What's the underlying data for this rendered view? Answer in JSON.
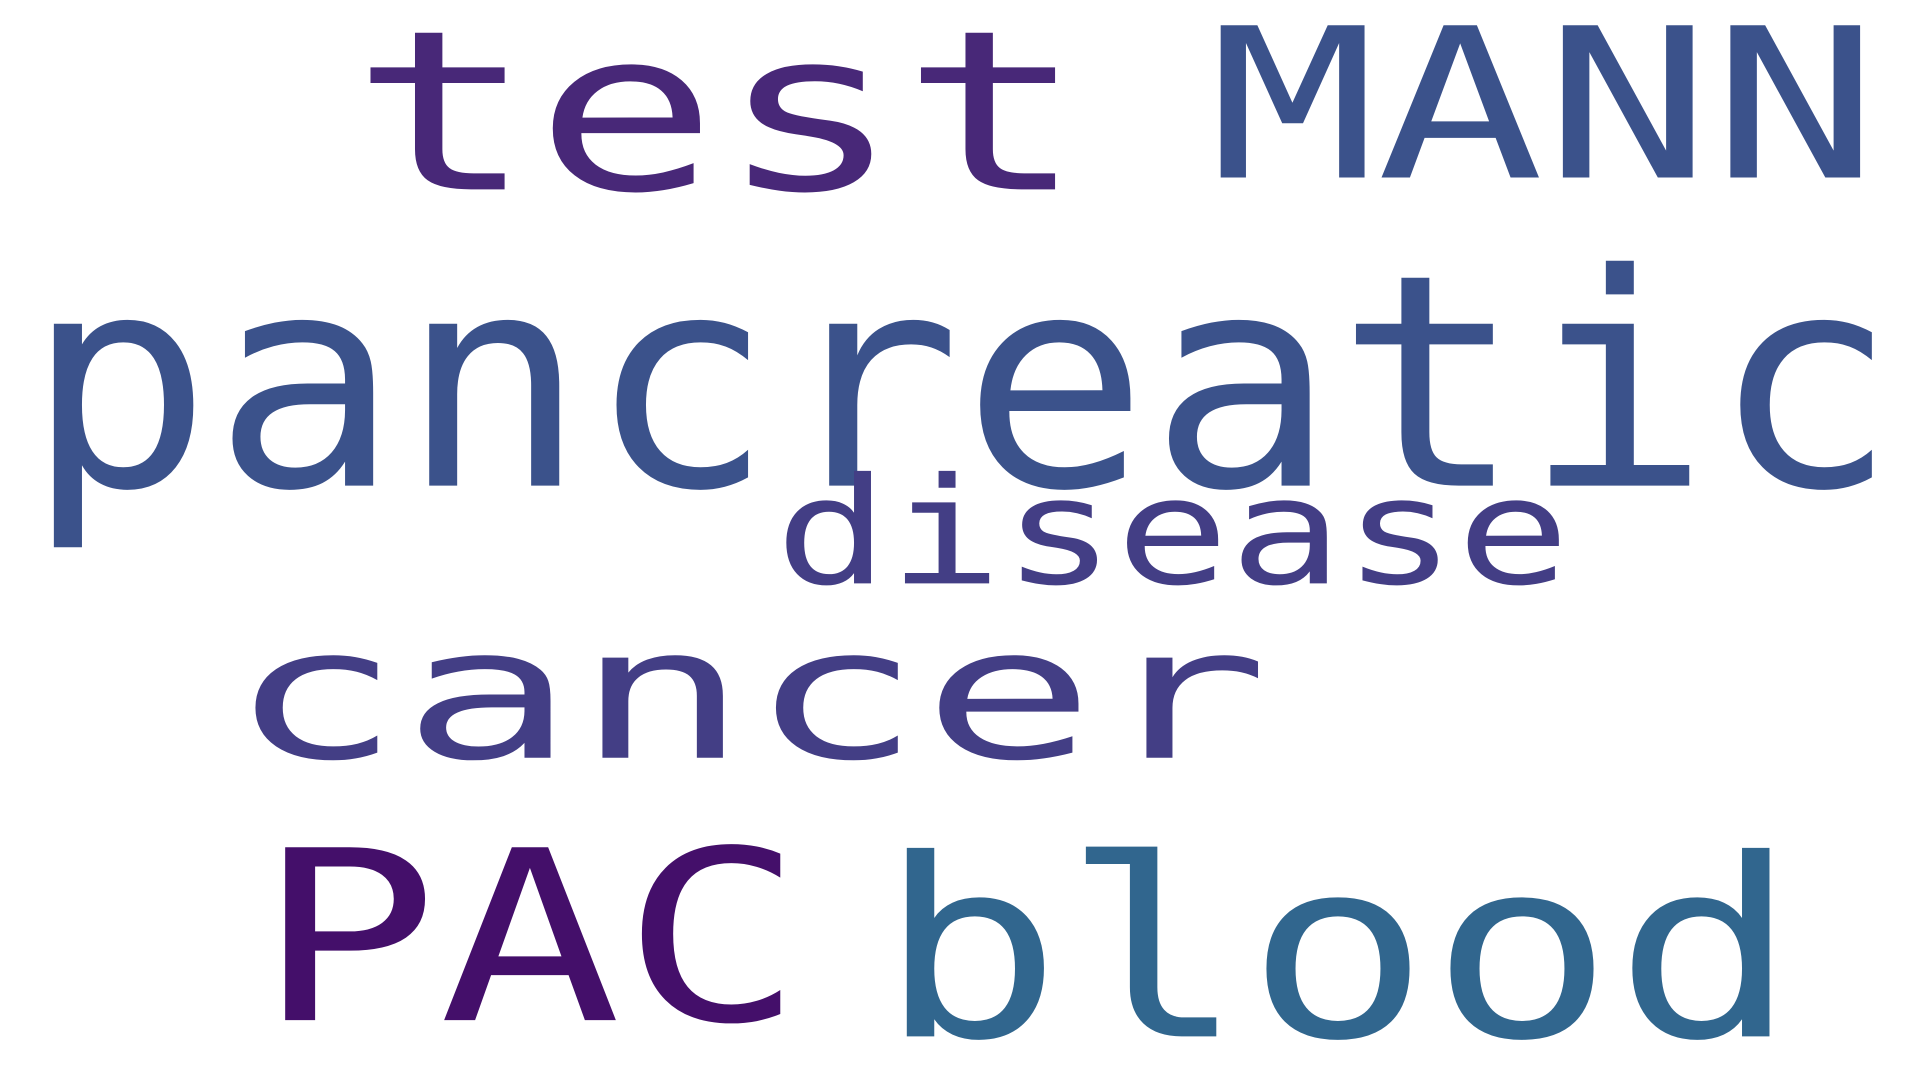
{
  "word_cloud": {
    "words": [
      {
        "id": "test",
        "text": "test",
        "color": "#482878"
      },
      {
        "id": "mann",
        "text": "MANN",
        "color": "#3b528b"
      },
      {
        "id": "pancreatic",
        "text": "pancreatic",
        "color": "#3b528b"
      },
      {
        "id": "disease",
        "text": "disease",
        "color": "#433e85"
      },
      {
        "id": "cancer",
        "text": "cancer",
        "color": "#433e85"
      },
      {
        "id": "pac",
        "text": "PAC",
        "color": "#440f6a"
      },
      {
        "id": "blood",
        "text": "blood",
        "color": "#31668e"
      }
    ]
  }
}
